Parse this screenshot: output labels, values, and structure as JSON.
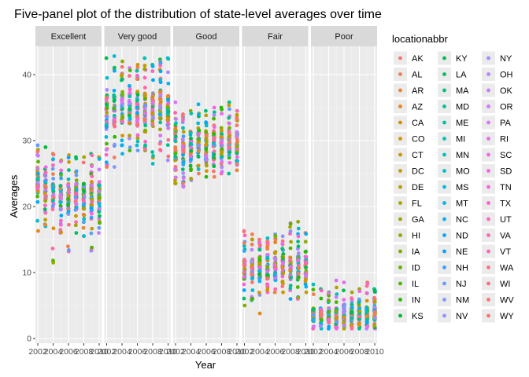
{
  "chart_data": {
    "type": "scatter",
    "title": "Five-panel plot of the distribution of state-level averages over time",
    "xlabel": "Year",
    "ylabel": "Averages",
    "xlim": [
      2002,
      2010
    ],
    "ylim": [
      0,
      45
    ],
    "x_ticks": [
      2002,
      2004,
      2006,
      2008,
      2010
    ],
    "y_ticks": [
      0,
      10,
      20,
      30,
      40
    ],
    "grid": true,
    "legend_position": "right",
    "legend_title": "locationabbr",
    "panels": [
      {
        "label": "Excellent",
        "stats": [
          {
            "x": 2002,
            "min": 16.3,
            "q1": 21.5,
            "med": 23.5,
            "q3": 25.5,
            "max": 29.3
          },
          {
            "x": 2003,
            "min": 17.0,
            "q1": 21.0,
            "med": 23.0,
            "q3": 25.2,
            "max": 29.0
          },
          {
            "x": 2004,
            "min": 11.5,
            "q1": 19.5,
            "med": 21.5,
            "q3": 23.5,
            "max": 28.0
          },
          {
            "x": 2005,
            "min": 16.0,
            "q1": 19.5,
            "med": 21.5,
            "q3": 23.5,
            "max": 27.0
          },
          {
            "x": 2006,
            "min": 13.2,
            "q1": 19.5,
            "med": 21.5,
            "q3": 23.5,
            "max": 27.8
          },
          {
            "x": 2007,
            "min": 16.0,
            "q1": 19.5,
            "med": 21.5,
            "q3": 23.5,
            "max": 27.5
          },
          {
            "x": 2008,
            "min": 15.5,
            "q1": 19.5,
            "med": 21.5,
            "q3": 23.5,
            "max": 27.5
          },
          {
            "x": 2009,
            "min": 13.3,
            "q1": 19.0,
            "med": 21.0,
            "q3": 23.0,
            "max": 28.0
          },
          {
            "x": 2010,
            "min": 16.0,
            "q1": 19.0,
            "med": 21.5,
            "q3": 23.5,
            "max": 27.5
          }
        ]
      },
      {
        "label": "Very good",
        "stats": [
          {
            "x": 2002,
            "min": 26.0,
            "q1": 32.0,
            "med": 34.5,
            "q3": 37.0,
            "max": 42.5
          },
          {
            "x": 2003,
            "min": 26.0,
            "q1": 32.0,
            "med": 34.5,
            "q3": 37.0,
            "max": 42.8
          },
          {
            "x": 2004,
            "min": 28.0,
            "q1": 32.5,
            "med": 35.0,
            "q3": 37.5,
            "max": 42.0
          },
          {
            "x": 2005,
            "min": 28.5,
            "q1": 32.5,
            "med": 35.0,
            "q3": 37.5,
            "max": 41.0
          },
          {
            "x": 2006,
            "min": 28.5,
            "q1": 32.5,
            "med": 35.0,
            "q3": 37.5,
            "max": 41.5
          },
          {
            "x": 2007,
            "min": 28.5,
            "q1": 32.5,
            "med": 35.0,
            "q3": 37.5,
            "max": 42.5
          },
          {
            "x": 2008,
            "min": 26.5,
            "q1": 32.0,
            "med": 34.5,
            "q3": 37.0,
            "max": 41.5
          },
          {
            "x": 2009,
            "min": 28.5,
            "q1": 32.5,
            "med": 35.0,
            "q3": 37.5,
            "max": 42.3
          },
          {
            "x": 2010,
            "min": 27.0,
            "q1": 32.0,
            "med": 34.5,
            "q3": 37.0,
            "max": 42.5
          }
        ]
      },
      {
        "label": "Good",
        "stats": [
          {
            "x": 2002,
            "min": 23.5,
            "q1": 27.0,
            "med": 29.5,
            "q3": 31.5,
            "max": 35.8
          },
          {
            "x": 2003,
            "min": 23.0,
            "q1": 26.5,
            "med": 29.0,
            "q3": 31.0,
            "max": 34.0
          },
          {
            "x": 2004,
            "min": 24.0,
            "q1": 27.0,
            "med": 29.5,
            "q3": 31.5,
            "max": 34.5
          },
          {
            "x": 2005,
            "min": 25.0,
            "q1": 27.5,
            "med": 29.5,
            "q3": 31.5,
            "max": 35.5
          },
          {
            "x": 2006,
            "min": 24.5,
            "q1": 27.0,
            "med": 29.5,
            "q3": 31.5,
            "max": 34.5
          },
          {
            "x": 2007,
            "min": 24.5,
            "q1": 27.0,
            "med": 29.5,
            "q3": 31.5,
            "max": 35.0
          },
          {
            "x": 2008,
            "min": 25.0,
            "q1": 27.5,
            "med": 29.5,
            "q3": 31.5,
            "max": 35.0
          },
          {
            "x": 2009,
            "min": 25.0,
            "q1": 27.5,
            "med": 30.0,
            "q3": 32.0,
            "max": 35.8
          },
          {
            "x": 2010,
            "min": 25.5,
            "q1": 27.5,
            "med": 30.0,
            "q3": 32.0,
            "max": 34.5
          }
        ]
      },
      {
        "label": "Fair",
        "stats": [
          {
            "x": 2002,
            "min": 5.0,
            "q1": 9.0,
            "med": 10.5,
            "q3": 12.0,
            "max": 16.3
          },
          {
            "x": 2003,
            "min": 5.8,
            "q1": 9.0,
            "med": 10.5,
            "q3": 12.0,
            "max": 15.8
          },
          {
            "x": 2004,
            "min": 3.8,
            "q1": 9.0,
            "med": 10.5,
            "q3": 12.0,
            "max": 15.0
          },
          {
            "x": 2005,
            "min": 7.0,
            "q1": 9.0,
            "med": 10.5,
            "q3": 12.5,
            "max": 15.2
          },
          {
            "x": 2006,
            "min": 7.0,
            "q1": 9.0,
            "med": 10.5,
            "q3": 12.5,
            "max": 15.8
          },
          {
            "x": 2007,
            "min": 7.0,
            "q1": 9.0,
            "med": 10.5,
            "q3": 12.5,
            "max": 15.5
          },
          {
            "x": 2008,
            "min": 6.0,
            "q1": 9.0,
            "med": 10.5,
            "q3": 12.5,
            "max": 17.5
          },
          {
            "x": 2009,
            "min": 6.0,
            "q1": 9.0,
            "med": 11.0,
            "q3": 12.5,
            "max": 17.7
          },
          {
            "x": 2010,
            "min": 7.0,
            "q1": 9.0,
            "med": 11.0,
            "q3": 12.5,
            "max": 16.0
          }
        ]
      },
      {
        "label": "Poor",
        "stats": [
          {
            "x": 2002,
            "min": 1.5,
            "q1": 2.8,
            "med": 3.6,
            "q3": 4.6,
            "max": 8.2
          },
          {
            "x": 2003,
            "min": 1.5,
            "q1": 2.8,
            "med": 3.6,
            "q3": 4.6,
            "max": 7.5
          },
          {
            "x": 2004,
            "min": 1.5,
            "q1": 2.8,
            "med": 3.6,
            "q3": 4.6,
            "max": 7.0
          },
          {
            "x": 2005,
            "min": 1.5,
            "q1": 2.8,
            "med": 3.6,
            "q3": 4.6,
            "max": 8.8
          },
          {
            "x": 2006,
            "min": 1.5,
            "q1": 2.8,
            "med": 3.6,
            "q3": 4.6,
            "max": 8.5
          },
          {
            "x": 2007,
            "min": 1.5,
            "q1": 2.8,
            "med": 3.6,
            "q3": 4.6,
            "max": 7.0
          },
          {
            "x": 2008,
            "min": 1.5,
            "q1": 2.8,
            "med": 3.6,
            "q3": 4.6,
            "max": 7.5
          },
          {
            "x": 2009,
            "min": 1.5,
            "q1": 2.8,
            "med": 3.8,
            "q3": 4.8,
            "max": 8.5
          },
          {
            "x": 2010,
            "min": 1.5,
            "q1": 2.8,
            "med": 3.8,
            "q3": 4.8,
            "max": 7.5
          }
        ]
      }
    ],
    "legend": [
      {
        "abbr": "AK",
        "color": "#F8766D"
      },
      {
        "abbr": "AL",
        "color": "#F47D4F"
      },
      {
        "abbr": "AR",
        "color": "#EE8330"
      },
      {
        "abbr": "AZ",
        "color": "#E68613"
      },
      {
        "abbr": "CA",
        "color": "#DE8C00"
      },
      {
        "abbr": "CO",
        "color": "#D49300"
      },
      {
        "abbr": "CT",
        "color": "#CD9600"
      },
      {
        "abbr": "DC",
        "color": "#C49A00"
      },
      {
        "abbr": "DE",
        "color": "#B79F00"
      },
      {
        "abbr": "FL",
        "color": "#ABA300"
      },
      {
        "abbr": "GA",
        "color": "#9FA700"
      },
      {
        "abbr": "HI",
        "color": "#8EAB00"
      },
      {
        "abbr": "IA",
        "color": "#7CAE00"
      },
      {
        "abbr": "ID",
        "color": "#64B200"
      },
      {
        "abbr": "IL",
        "color": "#4CB500"
      },
      {
        "abbr": "IN",
        "color": "#2AB800"
      },
      {
        "abbr": "KS",
        "color": "#00BA38"
      },
      {
        "abbr": "KY",
        "color": "#00BC4E"
      },
      {
        "abbr": "LA",
        "color": "#00BE67"
      },
      {
        "abbr": "MA",
        "color": "#00BF7D"
      },
      {
        "abbr": "MD",
        "color": "#00C094"
      },
      {
        "abbr": "ME",
        "color": "#00C1A7"
      },
      {
        "abbr": "MI",
        "color": "#00C0B8"
      },
      {
        "abbr": "MN",
        "color": "#00BFC4"
      },
      {
        "abbr": "MO",
        "color": "#00BDD0"
      },
      {
        "abbr": "MS",
        "color": "#00BADE"
      },
      {
        "abbr": "MT",
        "color": "#00B6EB"
      },
      {
        "abbr": "NC",
        "color": "#00B0F6"
      },
      {
        "abbr": "ND",
        "color": "#00A9FF"
      },
      {
        "abbr": "NE",
        "color": "#00A5FF"
      },
      {
        "abbr": "NH",
        "color": "#35A2FF"
      },
      {
        "abbr": "NJ",
        "color": "#619CFF"
      },
      {
        "abbr": "NM",
        "color": "#7F96FF"
      },
      {
        "abbr": "NV",
        "color": "#9590FF"
      },
      {
        "abbr": "NY",
        "color": "#A58AFF"
      },
      {
        "abbr": "OH",
        "color": "#B983FF"
      },
      {
        "abbr": "OK",
        "color": "#C77CFF"
      },
      {
        "abbr": "OR",
        "color": "#D376FF"
      },
      {
        "abbr": "PA",
        "color": "#DF70F8"
      },
      {
        "abbr": "RI",
        "color": "#E76BF3"
      },
      {
        "abbr": "SC",
        "color": "#EF67EB"
      },
      {
        "abbr": "SD",
        "color": "#F564E3"
      },
      {
        "abbr": "TN",
        "color": "#FA62DB"
      },
      {
        "abbr": "TX",
        "color": "#FD61D1"
      },
      {
        "abbr": "UT",
        "color": "#FF62BC"
      },
      {
        "abbr": "VA",
        "color": "#FF63B6"
      },
      {
        "abbr": "VT",
        "color": "#FF65AC"
      },
      {
        "abbr": "WA",
        "color": "#FE6E8A"
      },
      {
        "abbr": "WI",
        "color": "#FC717F"
      },
      {
        "abbr": "WV",
        "color": "#FA7476"
      },
      {
        "abbr": "WY",
        "color": "#F8766D"
      }
    ],
    "colors": {
      "panel_background": "#EBEBEB",
      "grid_major": "#FFFFFF",
      "grid_minor": "#F5F5F5",
      "strip_background": "#D9D9D9"
    }
  }
}
